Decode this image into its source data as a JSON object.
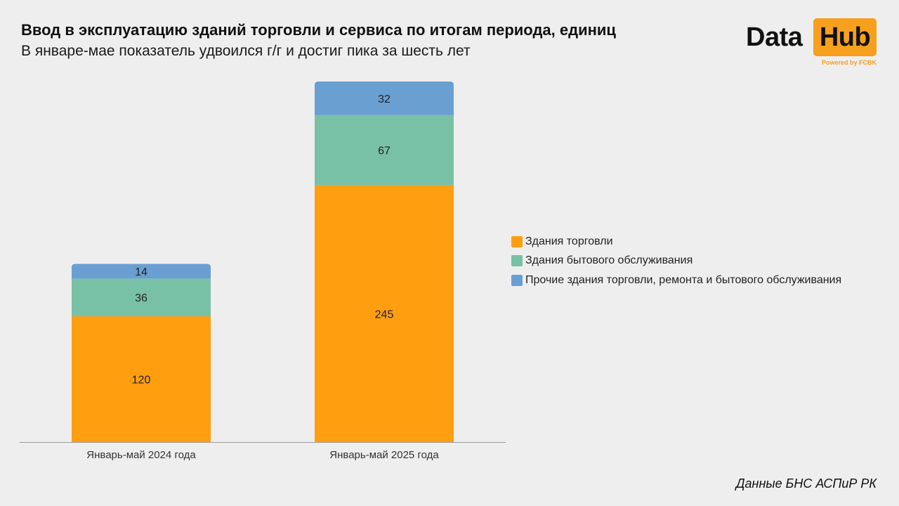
{
  "header": {
    "title": "Ввод в эксплуатацию зданий торговли и сервиса по итогам периода, единиц",
    "subtitle": "В январе-мае показатель удвоился г/г и достиг пика за шесть лет"
  },
  "logo": {
    "data_text": "Data",
    "hub_text": "Hub",
    "powered_text": "Powered by FCBK"
  },
  "footer": {
    "source": "Данные БНС АСПиР РК"
  },
  "chart_data": {
    "type": "bar",
    "stacked": true,
    "title": "Ввод в эксплуатацию зданий торговли и сервиса по итогам периода, единиц",
    "subtitle": "В январе-мае показатель удвоился г/г и достиг пика за шесть лет",
    "xlabel": "",
    "ylabel": "",
    "ylim": [
      0,
      344
    ],
    "grid": false,
    "legend_position": "right",
    "categories": [
      "Январь-май 2024 года",
      "Январь-май 2025 года"
    ],
    "series": [
      {
        "name": "Здания торговли",
        "color": "#ff9e0f",
        "values": [
          120,
          245
        ]
      },
      {
        "name": "Здания бытового обслуживания",
        "color": "#79c1a6",
        "values": [
          36,
          67
        ]
      },
      {
        "name": "Прочие здания торговли, ремонта и бытового обслуживания",
        "color": "#6a9fd2",
        "values": [
          14,
          32
        ]
      }
    ]
  }
}
